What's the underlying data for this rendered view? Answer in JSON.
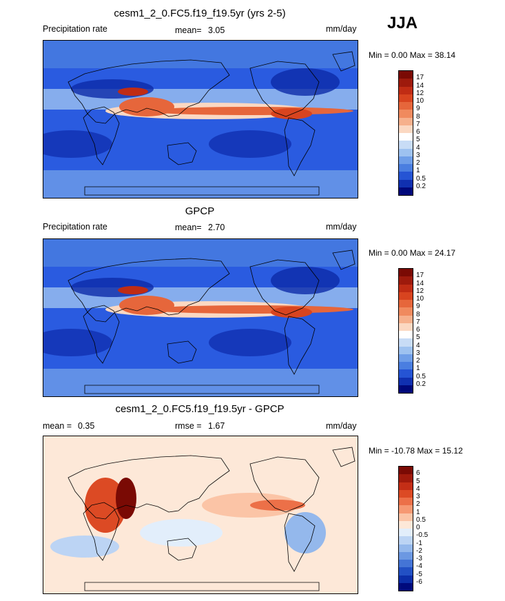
{
  "season": "JJA",
  "panels": [
    {
      "title": "cesm1_2_0.FC5.f19_f19.5yr (yrs 2-5)",
      "left_label": "Precipitation rate",
      "mid_label": "mean=",
      "mid_value": "3.05",
      "right_label": "mm/day",
      "minmax": "Min =   0.00 Max =  38.14",
      "colorbar": {
        "labels": [
          "17",
          "14",
          "12",
          "10",
          "9",
          "8",
          "7",
          "6",
          "5",
          "4",
          "3",
          "2",
          "1",
          "0.5",
          "0.2"
        ],
        "colors": [
          "#7a0a04",
          "#9e1a0c",
          "#c02c14",
          "#d8441f",
          "#e6663b",
          "#f08a5e",
          "#f6b08c",
          "#fbd8c2",
          "#ffffff",
          "#c8dcf6",
          "#9ec2f0",
          "#6f9ee8",
          "#4a7ee0",
          "#2554d4",
          "#1030b0",
          "#00087a"
        ]
      },
      "map_kind": "precip"
    },
    {
      "title": "GPCP",
      "left_label": "Precipitation rate",
      "mid_label": "mean=",
      "mid_value": "2.70",
      "right_label": "mm/day",
      "minmax": "Min =   0.00 Max =  24.17",
      "colorbar": {
        "labels": [
          "17",
          "14",
          "12",
          "10",
          "9",
          "8",
          "7",
          "6",
          "5",
          "4",
          "3",
          "2",
          "1",
          "0.5",
          "0.2"
        ],
        "colors": [
          "#7a0a04",
          "#9e1a0c",
          "#c02c14",
          "#d8441f",
          "#e6663b",
          "#f08a5e",
          "#f6b08c",
          "#fbd8c2",
          "#ffffff",
          "#c8dcf6",
          "#9ec2f0",
          "#6f9ee8",
          "#4a7ee0",
          "#2554d4",
          "#1030b0",
          "#00087a"
        ]
      },
      "map_kind": "precip"
    },
    {
      "title": "cesm1_2_0.FC5.f19_f19.5yr - GPCP",
      "left_label": "mean =",
      "left_value": "0.35",
      "mid_label": "rmse =",
      "mid_value": "1.67",
      "right_label": "mm/day",
      "minmax": "Min = -10.78 Max =  15.12",
      "colorbar": {
        "labels": [
          "6",
          "5",
          "4",
          "3",
          "2",
          "1",
          "0.5",
          "0",
          "-0.5",
          "-1",
          "-2",
          "-3",
          "-4",
          "-5",
          "-6"
        ],
        "colors": [
          "#7a0a04",
          "#a01a0c",
          "#c42e16",
          "#dc4a24",
          "#ec7048",
          "#f69872",
          "#fbc4a6",
          "#fde8d8",
          "#e2eefb",
          "#bcd4f4",
          "#94b8ec",
          "#6c98e2",
          "#4474d6",
          "#2250c4",
          "#0c2ea8",
          "#000a7c"
        ]
      },
      "map_kind": "diff"
    }
  ],
  "icons": {
    "coastline": "world-coastline-outline"
  }
}
